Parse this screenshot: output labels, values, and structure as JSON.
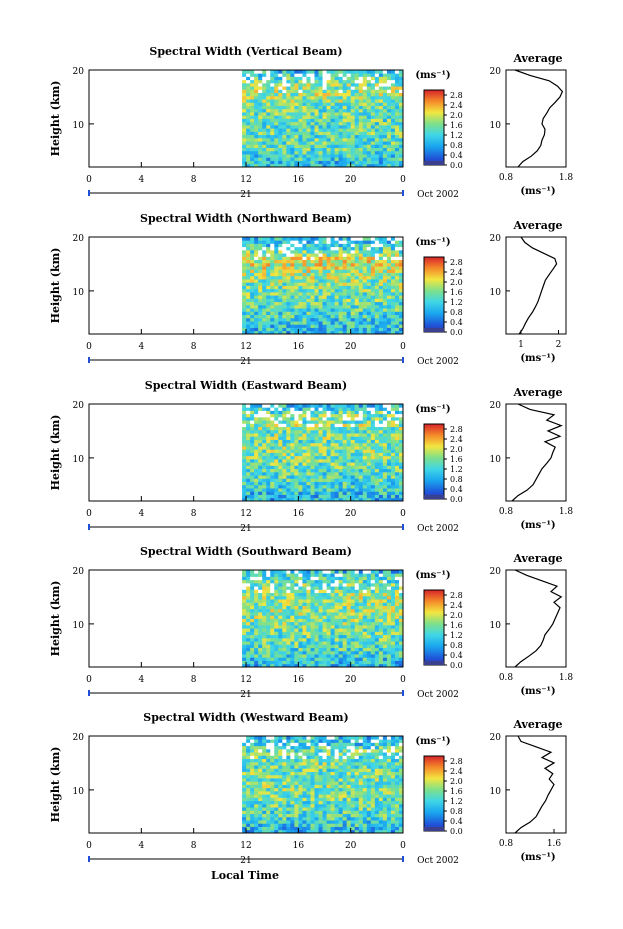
{
  "figure": {
    "xlabel": "Local Time",
    "date_label": "Oct 2002",
    "day_label": "21",
    "ylabel": "Height (km)",
    "colorbar_unit": "(ms⁻¹)",
    "avg_title": "Average",
    "avg_xlabel": "(ms⁻¹)"
  },
  "chart_data": [
    {
      "type": "heatmap",
      "title": "Spectral Width (Vertical Beam)",
      "xlim": [
        0,
        24
      ],
      "xticks": [
        "0",
        "4",
        "8",
        "12",
        "16",
        "20",
        "0"
      ],
      "ylim": [
        2,
        20
      ],
      "yticks": [
        "10",
        "20"
      ],
      "data_start_hour": 11.7,
      "colorbar": {
        "range": [
          0,
          3
        ],
        "ticks": [
          "2.8",
          "2.4",
          "2.0",
          "1.6",
          "1.2",
          "0.8",
          "0.4",
          "0.0"
        ]
      },
      "average": {
        "xlim": [
          0.8,
          1.8
        ],
        "xticks": [
          "0.8",
          "1.8"
        ],
        "heights": [
          2,
          3,
          4,
          5,
          6,
          7,
          8,
          9,
          10,
          11,
          12,
          13,
          14,
          15,
          16,
          17,
          18,
          19,
          20
        ],
        "values": [
          1.0,
          1.08,
          1.22,
          1.32,
          1.38,
          1.4,
          1.44,
          1.45,
          1.4,
          1.42,
          1.48,
          1.53,
          1.62,
          1.7,
          1.74,
          1.66,
          1.52,
          1.2,
          0.95
        ]
      }
    },
    {
      "type": "heatmap",
      "title": "Spectral Width (Northward Beam)",
      "xlim": [
        0,
        24
      ],
      "xticks": [
        "0",
        "4",
        "8",
        "12",
        "16",
        "20",
        "0"
      ],
      "ylim": [
        2,
        20
      ],
      "yticks": [
        "10",
        "20"
      ],
      "data_start_hour": 11.7,
      "colorbar": {
        "range": [
          0,
          3
        ],
        "ticks": [
          "2.8",
          "2.4",
          "2.0",
          "1.6",
          "1.2",
          "0.8",
          "0.4",
          "0.0"
        ]
      },
      "average": {
        "xlim": [
          0.6,
          2.2
        ],
        "xticks": [
          "1",
          "2"
        ],
        "heights": [
          2,
          3,
          4,
          5,
          6,
          7,
          8,
          9,
          10,
          11,
          12,
          13,
          14,
          15,
          16,
          17,
          18,
          19,
          20
        ],
        "values": [
          0.95,
          1.05,
          1.12,
          1.2,
          1.3,
          1.38,
          1.45,
          1.5,
          1.55,
          1.6,
          1.65,
          1.75,
          1.85,
          1.95,
          1.9,
          1.6,
          1.3,
          1.1,
          1.0
        ]
      }
    },
    {
      "type": "heatmap",
      "title": "Spectral Width (Eastward Beam)",
      "xlim": [
        0,
        24
      ],
      "xticks": [
        "0",
        "4",
        "8",
        "12",
        "16",
        "20",
        "0"
      ],
      "ylim": [
        2,
        20
      ],
      "yticks": [
        "10",
        "20"
      ],
      "data_start_hour": 11.7,
      "colorbar": {
        "range": [
          0,
          3
        ],
        "ticks": [
          "2.8",
          "2.4",
          "2.0",
          "1.6",
          "1.2",
          "0.8",
          "0.4",
          "0.0"
        ]
      },
      "average": {
        "xlim": [
          0.8,
          1.8
        ],
        "xticks": [
          "0.8",
          "1.8"
        ],
        "heights": [
          2,
          3,
          4,
          5,
          6,
          7,
          8,
          9,
          10,
          11,
          12,
          13,
          14,
          15,
          16,
          17,
          18,
          19,
          20
        ],
        "values": [
          0.9,
          1.0,
          1.15,
          1.25,
          1.3,
          1.35,
          1.4,
          1.48,
          1.55,
          1.58,
          1.62,
          1.45,
          1.7,
          1.5,
          1.72,
          1.48,
          1.6,
          1.2,
          1.0
        ]
      }
    },
    {
      "type": "heatmap",
      "title": "Spectral Width (Southward Beam)",
      "xlim": [
        0,
        24
      ],
      "xticks": [
        "0",
        "4",
        "8",
        "12",
        "16",
        "20",
        "0"
      ],
      "ylim": [
        2,
        20
      ],
      "yticks": [
        "10",
        "20"
      ],
      "data_start_hour": 11.7,
      "colorbar": {
        "range": [
          0,
          3
        ],
        "ticks": [
          "2.8",
          "2.4",
          "2.0",
          "1.6",
          "1.2",
          "0.8",
          "0.4",
          "0.0"
        ]
      },
      "average": {
        "xlim": [
          0.8,
          1.8
        ],
        "xticks": [
          "0.8",
          "1.8"
        ],
        "heights": [
          2,
          3,
          4,
          5,
          6,
          7,
          8,
          9,
          10,
          11,
          12,
          13,
          14,
          15,
          16,
          17,
          18,
          19,
          20
        ],
        "values": [
          0.95,
          1.05,
          1.18,
          1.3,
          1.38,
          1.42,
          1.45,
          1.52,
          1.58,
          1.62,
          1.66,
          1.7,
          1.6,
          1.72,
          1.55,
          1.65,
          1.4,
          1.15,
          0.95
        ]
      }
    },
    {
      "type": "heatmap",
      "title": "Spectral Width (Westward Beam)",
      "xlim": [
        0,
        24
      ],
      "xticks": [
        "0",
        "4",
        "8",
        "12",
        "16",
        "20",
        "0"
      ],
      "ylim": [
        2,
        20
      ],
      "yticks": [
        "10",
        "20"
      ],
      "data_start_hour": 11.7,
      "colorbar": {
        "range": [
          0,
          3
        ],
        "ticks": [
          "2.8",
          "2.4",
          "2.0",
          "1.6",
          "1.2",
          "0.8",
          "0.4",
          "0.0"
        ]
      },
      "average": {
        "xlim": [
          0.8,
          1.8
        ],
        "xticks": [
          "0.8",
          "1.6"
        ],
        "heights": [
          2,
          3,
          4,
          5,
          6,
          7,
          8,
          9,
          10,
          11,
          12,
          13,
          14,
          15,
          16,
          17,
          18,
          19,
          20
        ],
        "values": [
          0.95,
          1.05,
          1.2,
          1.3,
          1.35,
          1.4,
          1.46,
          1.5,
          1.55,
          1.6,
          1.52,
          1.58,
          1.45,
          1.6,
          1.4,
          1.55,
          1.3,
          1.05,
          1.0
        ]
      }
    }
  ]
}
